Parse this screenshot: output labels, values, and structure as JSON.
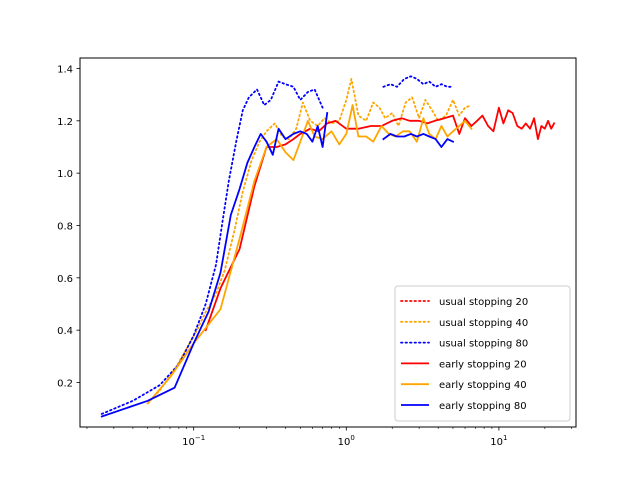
{
  "chart_data": {
    "type": "line",
    "title": "",
    "xlabel": "",
    "ylabel": "",
    "xscale": "log",
    "xlim": [
      0.018,
      32
    ],
    "ylim": [
      0.03,
      1.44
    ],
    "grid": false,
    "legend_position": "lower-right",
    "x_ticks": [
      {
        "value": 0.1,
        "base": "10",
        "exp": "−1"
      },
      {
        "value": 1,
        "base": "10",
        "exp": "0"
      },
      {
        "value": 10,
        "base": "10",
        "exp": "1"
      }
    ],
    "y_ticks": [
      "0.2",
      "0.4",
      "0.6",
      "0.8",
      "1.0",
      "1.2",
      "1.4"
    ],
    "series": [
      {
        "name": "usual stopping 20",
        "color": "#ff0000",
        "style": "dotted",
        "x": [],
        "y": []
      },
      {
        "name": "usual stopping 40",
        "color": "#ffa500",
        "style": "dotted",
        "x": [
          0.05,
          0.06,
          0.075,
          0.09,
          0.105,
          0.12,
          0.14,
          0.16,
          0.185,
          0.21,
          0.24,
          0.27,
          0.3,
          0.34,
          0.38,
          0.42,
          0.47,
          0.52,
          0.58,
          0.65,
          0.72,
          0.8,
          0.9,
          1.0,
          1.08,
          1.2,
          1.35,
          1.5,
          1.65,
          1.8,
          2.0,
          2.2,
          2.45,
          2.7,
          3.0,
          3.3,
          3.65,
          4.0,
          4.5,
          5.0,
          5.5,
          6.0,
          6.6
        ],
        "y": [
          0.12,
          0.17,
          0.25,
          0.33,
          0.4,
          0.47,
          0.54,
          0.63,
          0.78,
          0.93,
          1.05,
          1.12,
          1.16,
          1.19,
          1.14,
          1.13,
          1.17,
          1.27,
          1.2,
          1.18,
          1.21,
          1.19,
          1.2,
          1.28,
          1.36,
          1.22,
          1.2,
          1.27,
          1.25,
          1.21,
          1.23,
          1.18,
          1.27,
          1.29,
          1.21,
          1.28,
          1.24,
          1.2,
          1.22,
          1.28,
          1.22,
          1.25,
          1.26
        ]
      },
      {
        "name": "usual stopping 80",
        "color": "#0000ff",
        "style": "dotted",
        "x": [
          0.025,
          0.04,
          0.06,
          0.08,
          0.1,
          0.12,
          0.14,
          0.155,
          0.17,
          0.19,
          0.21,
          0.23,
          0.26,
          0.29,
          0.32,
          0.36,
          0.4,
          0.45,
          0.5,
          0.56,
          0.62,
          0.7,
          null,
          1.75,
          1.95,
          2.15,
          2.4,
          2.65,
          2.9,
          3.2,
          3.5,
          3.85,
          4.2,
          4.6,
          5.0
        ],
        "y": [
          0.08,
          0.13,
          0.19,
          0.27,
          0.38,
          0.5,
          0.65,
          0.82,
          0.97,
          1.12,
          1.24,
          1.29,
          1.32,
          1.26,
          1.28,
          1.35,
          1.34,
          1.33,
          1.28,
          1.31,
          1.32,
          1.25,
          null,
          1.33,
          1.34,
          1.33,
          1.36,
          1.37,
          1.36,
          1.34,
          1.35,
          1.33,
          1.34,
          1.33,
          1.33
        ]
      },
      {
        "name": "early stopping 20",
        "color": "#ff0000",
        "style": "solid",
        "x": [
          0.12,
          0.15,
          0.2,
          0.25,
          0.3,
          0.35,
          0.4,
          0.45,
          0.5,
          0.58,
          0.66,
          0.75,
          0.85,
          1.0,
          1.2,
          1.45,
          1.7,
          2.0,
          2.3,
          2.6,
          3.0,
          3.4,
          3.8,
          4.4,
          5.0,
          5.5,
          6.0,
          6.6,
          7.2,
          7.8,
          8.5,
          9.2,
          10.0,
          10.7,
          11.5,
          12.3,
          13.2,
          14.1,
          15.0,
          16.0,
          17.0,
          18.0,
          19.0,
          20.0,
          21.0,
          22.0,
          23.0
        ],
        "y": [
          0.4,
          0.56,
          0.71,
          0.95,
          1.1,
          1.1,
          1.11,
          1.13,
          1.15,
          1.17,
          1.16,
          1.19,
          1.2,
          1.17,
          1.17,
          1.18,
          1.18,
          1.2,
          1.21,
          1.2,
          1.2,
          1.19,
          1.2,
          1.21,
          1.22,
          1.15,
          1.21,
          1.18,
          1.2,
          1.22,
          1.18,
          1.16,
          1.25,
          1.19,
          1.24,
          1.23,
          1.18,
          1.17,
          1.19,
          1.17,
          1.21,
          1.13,
          1.18,
          1.17,
          1.2,
          1.17,
          1.19
        ]
      },
      {
        "name": "early stopping 40",
        "color": "#ffa500",
        "style": "solid",
        "x": [
          0.05,
          0.07,
          0.1,
          0.15,
          0.2,
          0.25,
          0.3,
          0.35,
          0.4,
          0.45,
          0.5,
          0.56,
          0.62,
          0.7,
          0.8,
          0.9,
          1.0,
          1.1,
          1.2,
          1.35,
          1.5,
          1.7,
          1.9,
          2.1,
          2.35,
          2.6,
          2.9,
          3.2,
          3.5,
          3.85,
          4.2,
          4.6,
          5.0,
          5.5,
          6.0,
          6.6
        ],
        "y": [
          0.12,
          0.22,
          0.35,
          0.48,
          0.75,
          0.97,
          1.1,
          1.13,
          1.08,
          1.05,
          1.12,
          1.2,
          1.14,
          1.13,
          1.16,
          1.11,
          1.15,
          1.26,
          1.14,
          1.14,
          1.12,
          1.18,
          1.15,
          1.14,
          1.16,
          1.16,
          1.12,
          1.21,
          1.15,
          1.13,
          1.18,
          1.14,
          1.16,
          1.18,
          1.2,
          1.17
        ]
      },
      {
        "name": "early stopping 80",
        "color": "#0000ff",
        "style": "solid",
        "x": [
          0.025,
          0.05,
          0.075,
          0.1,
          0.125,
          0.15,
          0.175,
          0.2,
          0.225,
          0.25,
          0.275,
          0.3,
          0.33,
          0.36,
          0.4,
          0.45,
          0.5,
          0.55,
          0.6,
          0.65,
          0.7,
          0.75,
          null,
          1.75,
          1.95,
          2.15,
          2.4,
          2.65,
          2.9,
          3.2,
          3.5,
          3.85,
          4.2,
          4.6,
          5.0
        ],
        "y": [
          0.07,
          0.13,
          0.18,
          0.35,
          0.47,
          0.62,
          0.84,
          0.94,
          1.04,
          1.1,
          1.15,
          1.12,
          1.07,
          1.17,
          1.13,
          1.15,
          1.16,
          1.15,
          1.12,
          1.18,
          1.1,
          1.23,
          null,
          1.13,
          1.15,
          1.14,
          1.14,
          1.15,
          1.14,
          1.15,
          1.14,
          1.13,
          1.1,
          1.13,
          1.12
        ]
      }
    ]
  }
}
